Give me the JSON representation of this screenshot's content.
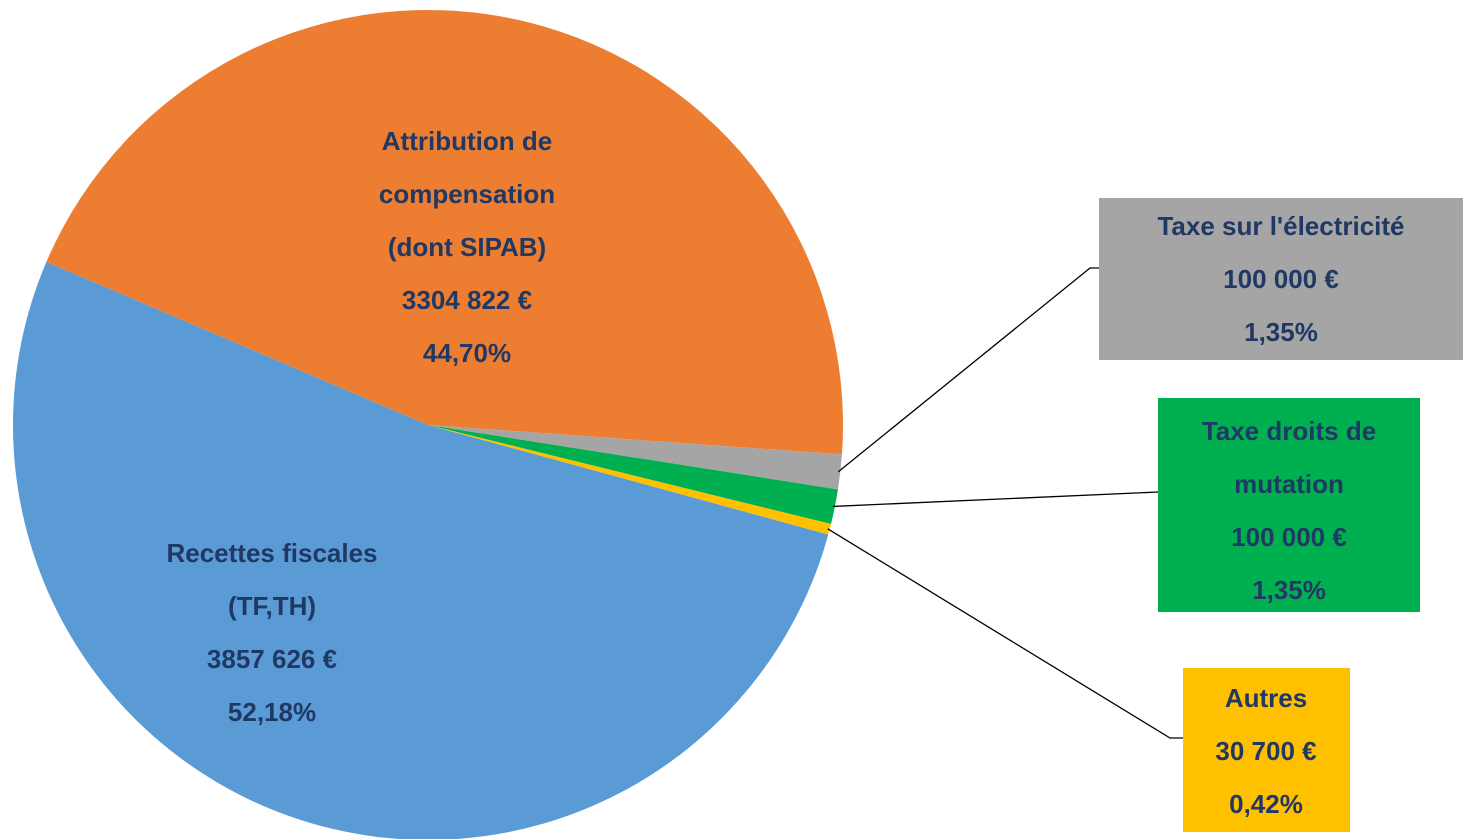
{
  "chart_data": {
    "type": "pie",
    "categories": [
      [
        "Recettes fiscales",
        "(TF,TH)"
      ],
      [
        "Attribution  de",
        "compensation",
        "(dont SIPAB)"
      ],
      [
        "Taxe sur l'électricité"
      ],
      [
        "Taxe droits de",
        "mutation"
      ],
      [
        "Autres"
      ]
    ],
    "values": [
      3857626,
      3304822,
      100000,
      100000,
      30700
    ],
    "value_labels": [
      "3857 626 €",
      "3304 822 €",
      "100 000 €",
      "100 000 €",
      "30 700 €"
    ],
    "percents": [
      52.18,
      44.7,
      1.35,
      1.35,
      0.42
    ],
    "percent_labels": [
      "52,18%",
      "44,70%",
      "1,35%",
      "1,35%",
      "0,42%"
    ],
    "colors": [
      "#5b9bd5",
      "#ed7d31",
      "#a5a5a5",
      "#00b050",
      "#ffc000"
    ]
  }
}
